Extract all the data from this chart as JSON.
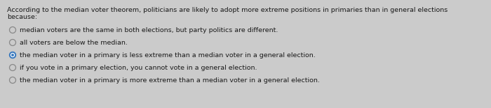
{
  "background_color": "#cbcbcb",
  "question_line1": "According to the median voter theorem, politicians are likely to adopt more extreme positions in primaries than in general elections",
  "question_line2": "because:",
  "options": [
    {
      "text": "median voters are the same in both elections, but party politics are different.",
      "selected": false
    },
    {
      "text": "all voters are below the median.",
      "selected": false
    },
    {
      "text": "the median voter in a primary is less extreme than a median voter in a general election.",
      "selected": true
    },
    {
      "text": "if you vote in a primary election, you cannot vote in a general election.",
      "selected": false
    },
    {
      "text": "the median voter in a primary is more extreme than a median voter in a general election.",
      "selected": false
    }
  ],
  "question_fontsize": 6.8,
  "option_fontsize": 6.8,
  "selected_color": "#3a7abf",
  "selected_border": "#2a5a9f",
  "unselected_color": "#888888",
  "text_color": "#1a1a1a",
  "question_color": "#1a1a1a"
}
